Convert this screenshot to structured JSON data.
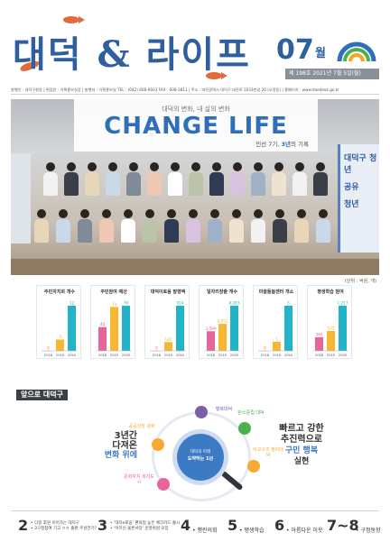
{
  "masthead": {
    "title": "대덕 & 라이프",
    "month": "07",
    "month_unit": "월",
    "issue": "제 198호  2021년 7월 5일(월)",
    "publisher_line": "발행인 : 대덕구청장  |  편집인 : 기획홍보실장  |  발행처 : 기획홍보실  TEL : (042) 608-6603  FAX : 608-3811  |  주소 : 대전광역시 대덕구 대전로 1033번길 20 (오정동)  |  홈페이지 : www.daedeok.go.kr",
    "colors": {
      "brand_blue": "#2f5f9e",
      "fish": "#e26b3b",
      "logo_blue": "#2f6fb8",
      "logo_green": "#4caf50",
      "logo_orange": "#f5a623"
    }
  },
  "cover": {
    "banner_subtitle": "대덕의 변화, 내 삶의 변화",
    "banner_title": "CHANGE LIFE",
    "banner_caption_prefix": "민선 7기, ",
    "banner_caption_highlight": "3년",
    "banner_caption_suffix": "의 기록",
    "poster_right_1": "대덕구 청년",
    "poster_right_2": "공유",
    "poster_right_3": "청년"
  },
  "unit_note": "(단위 : 억원, 개)",
  "chart_data": [
    {
      "type": "bar",
      "title": "주민자치회 개수",
      "categories": [
        "2018",
        "2019",
        "2020"
      ],
      "values": [
        0,
        3,
        12
      ],
      "value_labels": [
        "0",
        "3",
        "12"
      ],
      "ylim": [
        0,
        12
      ]
    },
    {
      "type": "bar",
      "title": "주민참여 예산",
      "categories": [
        "2018",
        "2019",
        "2020"
      ],
      "values": [
        40,
        74,
        76
      ],
      "value_labels": [
        "40",
        "74",
        "76"
      ],
      "ylim": [
        0,
        76
      ]
    },
    {
      "type": "bar",
      "title": "대덕이로움 발행액",
      "categories": [
        "2018",
        "2019",
        "2020"
      ],
      "values": [
        0,
        180,
        924
      ],
      "value_labels": [
        "0",
        "180",
        "924"
      ],
      "ylim": [
        0,
        924
      ]
    },
    {
      "type": "bar",
      "title": "일자리창출 개수",
      "categories": [
        "2018",
        "2019",
        "2020"
      ],
      "values": [
        3599,
        4952,
        8283
      ],
      "value_labels": [
        "3,599",
        "4,952",
        "8,283"
      ],
      "ylim": [
        0,
        8283
      ]
    },
    {
      "type": "bar",
      "title": "마을돌봄센터 개소",
      "categories": [
        "2018",
        "2019",
        "2020"
      ],
      "values": [
        0,
        1,
        5
      ],
      "value_labels": [
        "0",
        "1",
        "5"
      ],
      "ylim": [
        0,
        5
      ]
    },
    {
      "type": "bar",
      "title": "평생학습 참여",
      "categories": [
        "2018",
        "2019",
        "2020"
      ],
      "values": [
        366,
        535,
        1217
      ],
      "value_labels": [
        "366",
        "535",
        "1,217"
      ],
      "ylim": [
        0,
        1217
      ]
    }
  ],
  "chart_colors": [
    "#e8659b",
    "#f7b733",
    "#22b3c9"
  ],
  "section": {
    "tag": "앞으로 대덕구",
    "circle_line1": "대덕의 미래",
    "circle_line2": "도약하는 1년",
    "left_l1": "3년간",
    "left_l2": "다져온",
    "left_l3": "변화 위에",
    "right_r1": "빠르고 강한",
    "right_r2": "추진력으로",
    "right_r3": "구민 행복",
    "right_r4": "실현",
    "nodes": [
      {
        "label": "행복대덕",
        "color": "#7b5ea7"
      },
      {
        "label": "탄소중립 대덕",
        "color": "#4caf50"
      },
      {
        "label": "공공성장 강화",
        "color": "#f7a933"
      },
      {
        "label": "비교구조 정비대덕",
        "color": "#f7a933"
      },
      {
        "label": "문화자치 복지도시",
        "color": "#e8659b"
      }
    ]
  },
  "footer": {
    "items": [
      {
        "num": "2",
        "lines": [
          "• 다중 후원 이어가는 대덕구",
          "• 3구정참여 기고 ㅇㅇ 출판 주성전기?"
        ]
      },
      {
        "num": "3",
        "lines": [
          "• '대덕e로움' 편의점 높은 체크카드 출시",
          "• '어르신 울론서당' 운영위원 모집"
        ]
      },
      {
        "num": "4",
        "single": "• 행린의회"
      },
      {
        "num": "5",
        "single": "• 평생학습"
      },
      {
        "num": "6",
        "single": "• 아름다운 이웃"
      },
      {
        "num": "7~8",
        "single": "• 구정동향"
      }
    ]
  }
}
